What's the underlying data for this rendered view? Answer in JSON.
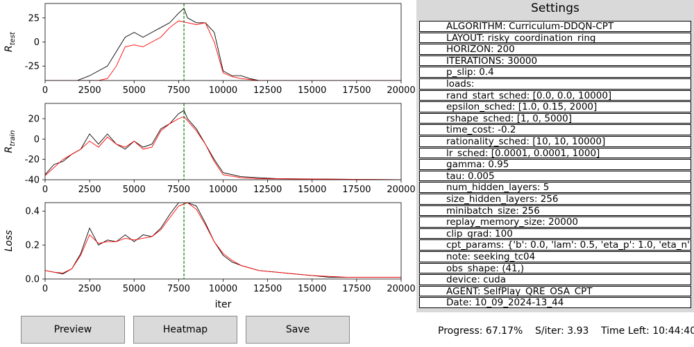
{
  "chart_data": [
    {
      "type": "line",
      "ylabel": "R_test",
      "xlim": [
        0,
        20000
      ],
      "ylim": [
        -40,
        40
      ],
      "xticks": [
        0,
        2500,
        5000,
        7500,
        10000,
        12500,
        15000,
        17500,
        20000
      ],
      "yticks": [
        -25,
        0,
        25
      ],
      "marker_x": 7800,
      "series": [
        {
          "color": "#000000",
          "x": [
            0,
            1800,
            2500,
            3000,
            3500,
            4000,
            4500,
            5000,
            5500,
            6000,
            6500,
            7000,
            7500,
            7800,
            8000,
            8500,
            9000,
            9500,
            10000,
            10500,
            11000,
            11500,
            12000,
            12500,
            20000
          ],
          "values": [
            -40,
            -40,
            -35,
            -30,
            -25,
            -10,
            5,
            10,
            5,
            10,
            15,
            20,
            30,
            35,
            25,
            20,
            20,
            10,
            -30,
            -35,
            -35,
            -38,
            -40,
            -40,
            -40
          ]
        },
        {
          "color": "#ff0000",
          "x": [
            0,
            3000,
            3500,
            4000,
            4500,
            5000,
            5500,
            6000,
            6500,
            7000,
            7500,
            8000,
            8500,
            9000,
            9500,
            10000,
            10500,
            11000,
            12000,
            20000
          ],
          "values": [
            -40,
            -40,
            -38,
            -25,
            -5,
            -3,
            -5,
            0,
            5,
            15,
            22,
            20,
            18,
            20,
            0,
            -32,
            -36,
            -38,
            -40,
            -40
          ]
        }
      ]
    },
    {
      "type": "line",
      "ylabel": "R_train",
      "xlim": [
        0,
        20000
      ],
      "ylim": [
        -40,
        35
      ],
      "xticks": [
        0,
        2500,
        5000,
        7500,
        10000,
        12500,
        15000,
        17500,
        20000
      ],
      "yticks": [
        -40,
        -20,
        0,
        20
      ],
      "marker_x": 7800,
      "series": [
        {
          "color": "#000000",
          "x": [
            0,
            500,
            1000,
            1500,
            2000,
            2500,
            3000,
            3500,
            4000,
            4500,
            5000,
            5500,
            6000,
            6500,
            7000,
            7500,
            7800,
            8000,
            8500,
            9000,
            9500,
            10000,
            11000,
            12000,
            13000,
            20000
          ],
          "values": [
            -35,
            -25,
            -22,
            -15,
            -10,
            5,
            -5,
            5,
            -5,
            -10,
            -2,
            -8,
            -5,
            10,
            15,
            25,
            28,
            20,
            10,
            -5,
            -20,
            -33,
            -37,
            -38,
            -39,
            -40
          ]
        },
        {
          "color": "#ff0000",
          "x": [
            0,
            500,
            1000,
            1500,
            2000,
            2500,
            3000,
            3500,
            4000,
            4500,
            5000,
            5500,
            6000,
            6500,
            7000,
            7500,
            7800,
            8000,
            8500,
            9000,
            9500,
            10000,
            11000,
            12000,
            20000
          ],
          "values": [
            -36,
            -28,
            -20,
            -15,
            -10,
            -2,
            -8,
            2,
            -5,
            -8,
            -2,
            -10,
            -8,
            8,
            15,
            20,
            22,
            18,
            8,
            -5,
            -22,
            -35,
            -38,
            -39,
            -40
          ]
        }
      ]
    },
    {
      "type": "line",
      "ylabel": "Loss",
      "xlabel": "iter",
      "xlim": [
        0,
        20000
      ],
      "ylim": [
        0,
        0.45
      ],
      "xticks": [
        0,
        2500,
        5000,
        7500,
        10000,
        12500,
        15000,
        17500,
        20000
      ],
      "yticks": [
        0.0,
        0.2,
        0.4
      ],
      "marker_x": 7800,
      "series": [
        {
          "color": "#000000",
          "x": [
            0,
            500,
            1000,
            1500,
            2000,
            2500,
            3000,
            3500,
            4000,
            4500,
            5000,
            5500,
            6000,
            6500,
            7000,
            7500,
            8000,
            8500,
            9000,
            9500,
            10000,
            10500,
            11000,
            12000,
            13000,
            14000,
            15000,
            16000,
            17000,
            20000
          ],
          "values": [
            0.05,
            0.04,
            0.03,
            0.06,
            0.15,
            0.3,
            0.2,
            0.23,
            0.22,
            0.26,
            0.22,
            0.26,
            0.25,
            0.3,
            0.38,
            0.45,
            0.45,
            0.43,
            0.33,
            0.22,
            0.14,
            0.1,
            0.08,
            0.05,
            0.04,
            0.03,
            0.02,
            0.01,
            0.01,
            0.01
          ]
        },
        {
          "color": "#ff0000",
          "x": [
            0,
            500,
            1000,
            1500,
            2000,
            2500,
            3000,
            3500,
            4000,
            4500,
            5000,
            5500,
            6000,
            6500,
            7000,
            7500,
            8000,
            8500,
            9000,
            9500,
            10000,
            10500,
            11000,
            12000,
            13000,
            14000,
            15000,
            16000,
            17000,
            20000
          ],
          "values": [
            0.05,
            0.04,
            0.035,
            0.06,
            0.14,
            0.26,
            0.21,
            0.22,
            0.22,
            0.24,
            0.23,
            0.24,
            0.25,
            0.29,
            0.36,
            0.43,
            0.45,
            0.41,
            0.32,
            0.22,
            0.15,
            0.11,
            0.08,
            0.05,
            0.04,
            0.03,
            0.02,
            0.015,
            0.01,
            0.01
          ]
        }
      ]
    }
  ],
  "settings": {
    "title": "Settings",
    "rows": [
      "ALGORITHM: Curriculum-DDQN-CPT",
      "LAYOUT: risky_coordination_ring",
      "HORIZON: 200",
      "ITERATIONS: 30000",
      "p_slip: 0.4",
      "loads:",
      "rand_start_sched: [0.0, 0.0, 10000]",
      "epsilon_sched: [1.0, 0.15, 2000]",
      "rshape_sched: [1, 0, 5000]",
      "time_cost: -0.2",
      "rationality_sched: [10, 10, 10000]",
      "lr_sched: [0.0001, 0.0001, 1000]",
      "gamma: 0.95",
      "tau: 0.005",
      "num_hidden_layers: 5",
      "size_hidden_layers: 256",
      "minibatch_size: 256",
      "replay_memory_size: 20000",
      "clip_grad: 100",
      "cpt_params: {'b': 0.0, 'lam': 0.5, 'eta_p': 1.0, 'eta_n'",
      "note: seeking_tc04",
      "obs_shape: (41,)",
      "device: cuda",
      "AGENT: SelfPlay_QRE_OSA_CPT",
      "Date: 10_09_2024-13_44"
    ]
  },
  "buttons": {
    "preview": "Preview",
    "heatmap": "Heatmap",
    "save": "Save"
  },
  "status": {
    "progress": "Progress: 67.17%",
    "s_iter": "S/iter: 3.93",
    "time_left": "Time Left: 10:44:40"
  }
}
